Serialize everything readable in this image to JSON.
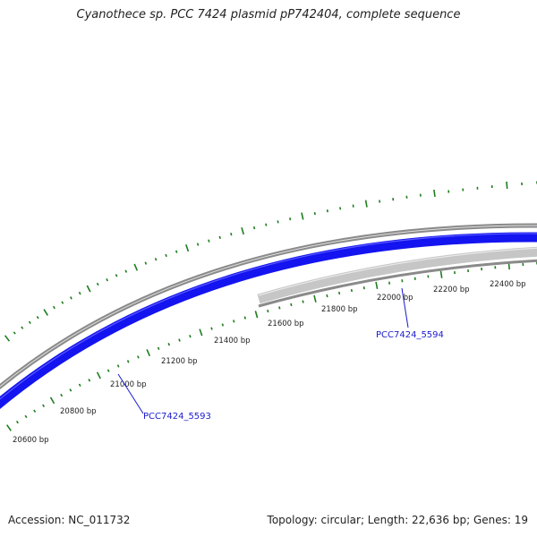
{
  "title": "Cyanothece sp. PCC 7424 plasmid pP742404, complete sequence",
  "footer": {
    "accession": "Accession: NC_011732",
    "summary": "Topology: circular; Length: 22,636 bp; Genes: 19"
  },
  "colors": {
    "cds_forward": "#1414f0",
    "cds_reverse": "#c8c8c8",
    "backbone": "#808080",
    "ticks": "#1e7d1e",
    "gene_label": "#1a1ad0"
  },
  "scale_labels": [
    "20600 bp",
    "20800 bp",
    "21000 bp",
    "21200 bp",
    "21400 bp",
    "21600 bp",
    "21800 bp",
    "22000 bp",
    "22200 bp",
    "22400 bp"
  ],
  "genes": [
    {
      "name": "PCC7424_5593",
      "strand": "forward"
    },
    {
      "name": "PCC7424_5594",
      "strand": "reverse"
    }
  ]
}
